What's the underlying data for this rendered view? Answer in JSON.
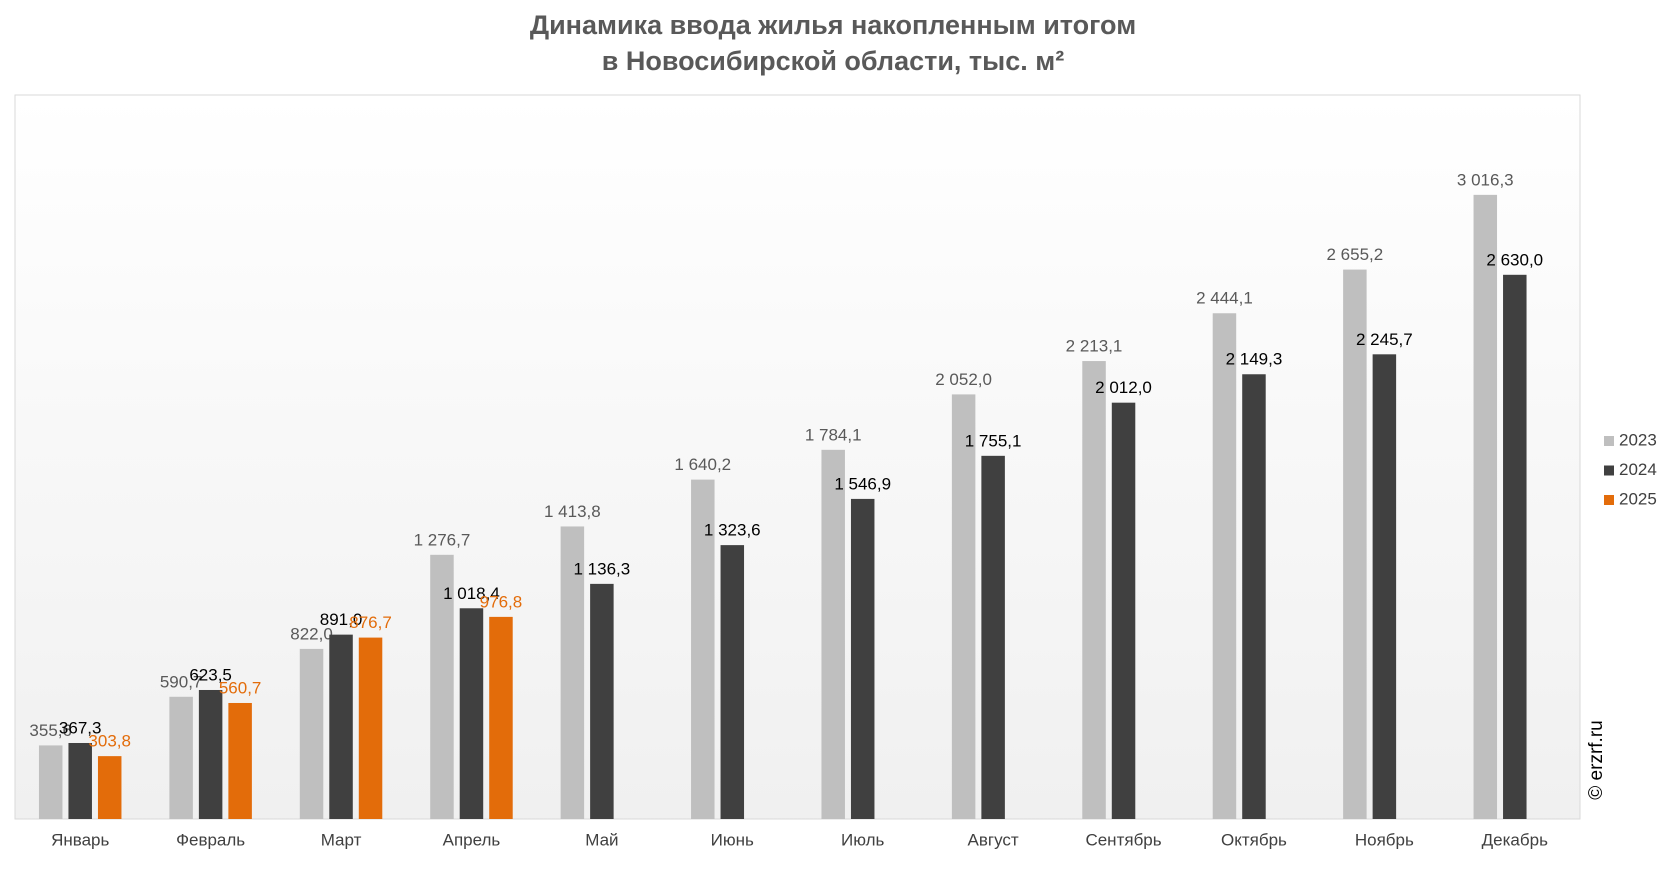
{
  "chart_data": {
    "type": "bar",
    "title": [
      "Динамика ввода жилья накопленным итогом",
      "в Новосибирской области, тыс. м²"
    ],
    "watermark": "© erzrf.ru",
    "categories": [
      "Январь",
      "Февраль",
      "Март",
      "Апрель",
      "Май",
      "Июнь",
      "Июль",
      "Август",
      "Сентябрь",
      "Октябрь",
      "Ноябрь",
      "Декабрь"
    ],
    "series": [
      {
        "name": "2023",
        "color": "#bfbfbf",
        "label_color": "#595959",
        "values": [
          355.6,
          590.7,
          822.0,
          1276.7,
          1413.8,
          1640.2,
          1784.1,
          2052.0,
          2213.1,
          2444.1,
          2655.2,
          3016.3
        ],
        "value_labels": [
          "355,6",
          "590,7",
          "822,0",
          "1 276,7",
          "1 413,8",
          "1 640,2",
          "1 784,1",
          "2 052,0",
          "2 213,1",
          "2 444,1",
          "2 655,2",
          "3 016,3"
        ]
      },
      {
        "name": "2024",
        "color": "#404040",
        "label_color": "#000000",
        "values": [
          367.3,
          623.5,
          891.0,
          1018.4,
          1136.3,
          1323.6,
          1546.9,
          1755.1,
          2012.0,
          2149.3,
          2245.7,
          2630.0
        ],
        "value_labels": [
          "367,3",
          "623,5",
          "891,0",
          "1 018,4",
          "1 136,3",
          "1 323,6",
          "1 546,9",
          "1 755,1",
          "2 012,0",
          "2 149,3",
          "2 245,7",
          "2 630,0"
        ]
      },
      {
        "name": "2025",
        "color": "#e36c0a",
        "label_color": "#e36c0a",
        "values": [
          303.8,
          560.7,
          876.7,
          976.8,
          null,
          null,
          null,
          null,
          null,
          null,
          null,
          null
        ],
        "value_labels": [
          "303,8",
          "560,7",
          "876,7",
          "976,8",
          null,
          null,
          null,
          null,
          null,
          null,
          null,
          null
        ]
      }
    ],
    "legend": "right"
  }
}
